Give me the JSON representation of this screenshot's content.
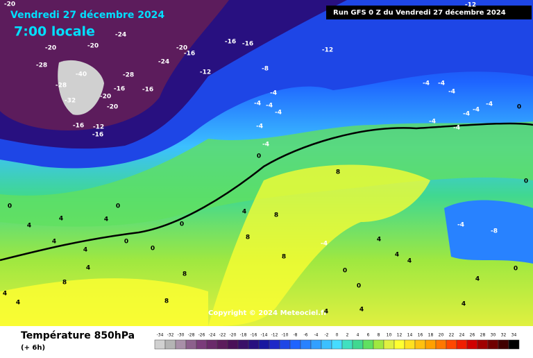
{
  "header": {
    "date": "Vendredi 27 décembre 2024",
    "time": "7:00 locale",
    "run": "Run GFS 0 Z du Vendredi 27 décembre 2024",
    "copyright": "Copyright © 2024 Meteociel.fr"
  },
  "footer": {
    "title": "Température 850hPa",
    "step": "(+ 6h)"
  },
  "legend": {
    "ticks": [
      -34,
      -32,
      -30,
      -28,
      -26,
      -24,
      -22,
      -20,
      -18,
      -16,
      -14,
      -12,
      -10,
      -8,
      -6,
      -4,
      -2,
      0,
      2,
      4,
      6,
      8,
      10,
      12,
      14,
      16,
      18,
      20,
      22,
      24,
      26,
      28,
      30,
      32,
      34
    ],
    "colors": [
      "#d0d0d0",
      "#b4b4b4",
      "#a890a8",
      "#8c608c",
      "#7a3c7a",
      "#6a2a6a",
      "#5c1c5c",
      "#4a1058",
      "#3a1068",
      "#281080",
      "#1818a0",
      "#1e28c8",
      "#1e46e6",
      "#1e64ff",
      "#2882ff",
      "#32a0ff",
      "#3cc0ff",
      "#46dcff",
      "#40e0c0",
      "#40d890",
      "#60e060",
      "#a0e840",
      "#e0f040",
      "#ffff30",
      "#ffe020",
      "#ffc010",
      "#ffa000",
      "#ff7800",
      "#ff4800",
      "#f01e00",
      "#d00000",
      "#a00000",
      "#700000",
      "#400000",
      "#000000"
    ]
  },
  "map_labels": [
    -20,
    -24,
    -20,
    -20,
    -28,
    -24,
    -20,
    -16,
    -16,
    -16,
    -12,
    -12,
    -8,
    -12,
    -28,
    -16,
    -16,
    -20,
    -20,
    -28,
    -32,
    -40,
    -16,
    -12,
    -16,
    -4,
    -4,
    -4,
    -4,
    -4,
    -4,
    0,
    -4,
    -4,
    -4,
    -4,
    -4,
    -4,
    -4,
    -4,
    0,
    8,
    0,
    4,
    8,
    0,
    0,
    4,
    0,
    4,
    4,
    8,
    0,
    4,
    4,
    0,
    8,
    4,
    8,
    8,
    4,
    4,
    8,
    -4,
    4,
    4,
    -4,
    -8,
    0,
    0,
    0,
    4,
    4,
    4,
    4,
    4
  ]
}
